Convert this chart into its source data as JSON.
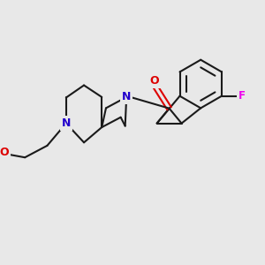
{
  "background_color": "#e8e8e8",
  "bond_color": "#1a1a1a",
  "bond_width": 1.5,
  "atom_colors": {
    "N": "#2200cc",
    "O_carbonyl": "#dd0000",
    "O_ether": "#dd0000",
    "F": "#ee00ee"
  },
  "figsize": [
    3.0,
    3.0
  ],
  "dpi": 100
}
